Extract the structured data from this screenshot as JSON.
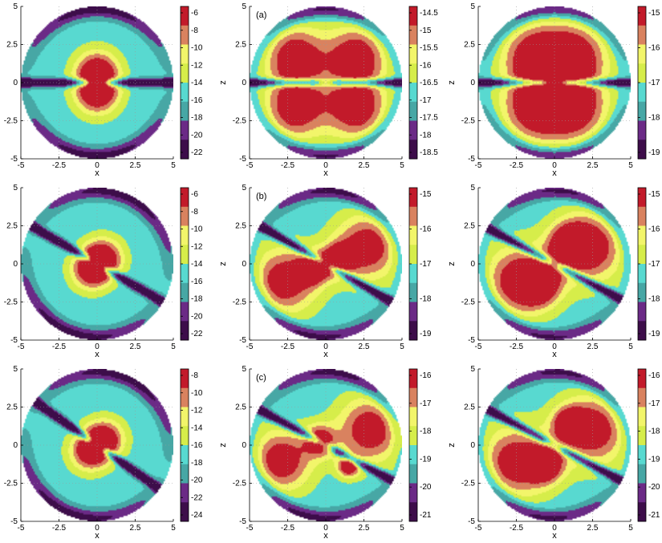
{
  "chart_data": {
    "type": "heatmap",
    "subplot_grid": {
      "rows": 3,
      "cols": 3
    },
    "axis": {
      "xlabel": "x",
      "zlabel": "z",
      "xlim": [
        -5,
        5
      ],
      "zlim": [
        -5,
        5
      ],
      "ticks": [
        -5,
        -2.5,
        0,
        2.5,
        5
      ]
    },
    "palette": [
      "#3d0d4a",
      "#6b2a86",
      "#47a7a5",
      "#58d9d0",
      "#d6ed4a",
      "#f2f56a",
      "#d9825f",
      "#c21a2a"
    ],
    "panels": [
      {
        "row": 0,
        "col": 0,
        "label": "",
        "show_xlabel": true,
        "show_zlabel": false,
        "cb_ticks": [
          "-6",
          "-8",
          "-10",
          "-12",
          "-14",
          "-16",
          "-18",
          "-20",
          "-22"
        ],
        "blobs": [
          {
            "x": 0,
            "z": 0.7,
            "s": 1.0
          },
          {
            "x": 0,
            "z": -0.7,
            "s": 1.0
          }
        ],
        "lobes": [],
        "node_angle_deg": 0,
        "outer_angle_deg": 90
      },
      {
        "row": 0,
        "col": 1,
        "label": "(a)",
        "show_xlabel": true,
        "show_zlabel": true,
        "cb_ticks": [
          "-14.5",
          "-15",
          "-15.5",
          "-16",
          "-16.5",
          "-17",
          "-17.5",
          "-18",
          "-18.5"
        ],
        "blobs": [
          {
            "x": -2,
            "z": 1.7,
            "s": 1.4
          },
          {
            "x": 2,
            "z": 1.7,
            "s": 1.4
          },
          {
            "x": -2,
            "z": -1.7,
            "s": 1.4
          },
          {
            "x": 2,
            "z": -1.7,
            "s": 1.4
          }
        ],
        "lobes": [],
        "node_angle_deg": 0,
        "outer_angle_deg": 90
      },
      {
        "row": 0,
        "col": 2,
        "label": "",
        "show_xlabel": true,
        "show_zlabel": true,
        "cb_ticks": [
          "-15",
          "-16",
          "-17",
          "-18",
          "-19"
        ],
        "blobs": [
          {
            "x": -1.3,
            "z": 1.7,
            "s": 1.5
          },
          {
            "x": 1.3,
            "z": 1.7,
            "s": 1.5
          },
          {
            "x": -1.3,
            "z": -1.7,
            "s": 1.5
          },
          {
            "x": 1.3,
            "z": -1.7,
            "s": 1.5
          }
        ],
        "lobes": [],
        "node_angle_deg": 0,
        "outer_angle_deg": 90
      },
      {
        "row": 1,
        "col": 0,
        "label": "",
        "show_xlabel": true,
        "show_zlabel": false,
        "cb_ticks": [
          "-6",
          "-8",
          "-10",
          "-12",
          "-14",
          "-16",
          "-18",
          "-20",
          "-22"
        ],
        "blobs": [
          {
            "x": 0.4,
            "z": 0.4,
            "s": 0.9
          },
          {
            "x": -0.4,
            "z": -0.4,
            "s": 0.9
          }
        ],
        "lobes": [],
        "node_angle_deg": -30,
        "outer_angle_deg": 70
      },
      {
        "row": 1,
        "col": 1,
        "label": "(b)",
        "show_xlabel": true,
        "show_zlabel": true,
        "cb_ticks": [
          "-15",
          "-16",
          "-17",
          "-18",
          "-19"
        ],
        "blobs": [
          {
            "x": 2.7,
            "z": 1.1,
            "s": 1.5
          },
          {
            "x": -2.7,
            "z": -1.1,
            "s": 1.5
          },
          {
            "x": 0.8,
            "z": 0.3,
            "s": 0.7
          },
          {
            "x": -0.8,
            "z": -0.3,
            "s": 0.7
          }
        ],
        "lobes": [],
        "node_angle_deg": -30,
        "outer_angle_deg": 70
      },
      {
        "row": 1,
        "col": 2,
        "label": "",
        "show_xlabel": true,
        "show_zlabel": true,
        "cb_ticks": [
          "-15",
          "-16",
          "-17",
          "-18",
          "-19"
        ],
        "blobs": [
          {
            "x": 2.3,
            "z": 1.1,
            "s": 1.6
          },
          {
            "x": -2.3,
            "z": -1.1,
            "s": 1.6
          },
          {
            "x": -1.0,
            "z": -1.3,
            "s": 0.9
          },
          {
            "x": 1.0,
            "z": 1.3,
            "s": 0.9
          }
        ],
        "lobes": [],
        "node_angle_deg": -28,
        "outer_angle_deg": 70
      },
      {
        "row": 2,
        "col": 0,
        "label": "",
        "show_xlabel": true,
        "show_zlabel": false,
        "cb_ticks": [
          "-8",
          "-10",
          "-12",
          "-14",
          "-16",
          "-18",
          "-20",
          "-22",
          "-24"
        ],
        "blobs": [
          {
            "x": 0.5,
            "z": 0.4,
            "s": 0.9
          },
          {
            "x": -0.5,
            "z": -0.4,
            "s": 0.9
          }
        ],
        "lobes": [],
        "node_angle_deg": -35,
        "outer_angle_deg": 70
      },
      {
        "row": 2,
        "col": 1,
        "label": "(c)",
        "show_xlabel": true,
        "show_zlabel": true,
        "cb_ticks": [
          "-16",
          "-17",
          "-18",
          "-19",
          "-20",
          "-21"
        ],
        "blobs": [
          {
            "x": 2.9,
            "z": 1.0,
            "s": 1.5
          },
          {
            "x": -2.9,
            "z": -1.0,
            "s": 1.4
          },
          {
            "x": -0.4,
            "z": 0.3,
            "s": 0.7
          },
          {
            "x": 1.5,
            "z": -1.4,
            "s": 0.5
          }
        ],
        "lobes": [],
        "node_angle_deg": -28,
        "outer_angle_deg": 70
      },
      {
        "row": 2,
        "col": 2,
        "label": "",
        "show_xlabel": true,
        "show_zlabel": true,
        "cb_ticks": [
          "-16",
          "-17",
          "-18",
          "-19",
          "-20",
          "-21"
        ],
        "blobs": [
          {
            "x": 2.5,
            "z": 1.0,
            "s": 1.6
          },
          {
            "x": -2.5,
            "z": -1.1,
            "s": 1.6
          },
          {
            "x": 1.0,
            "z": 1.4,
            "s": 0.7
          },
          {
            "x": -0.6,
            "z": -1.3,
            "s": 0.8
          }
        ],
        "lobes": [],
        "node_angle_deg": -28,
        "outer_angle_deg": 70
      }
    ]
  }
}
